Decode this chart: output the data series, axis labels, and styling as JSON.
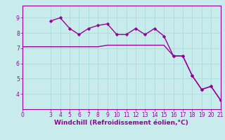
{
  "xlabel": "Windchill (Refroidissement éolien,°C)",
  "bg_color": "#c8ecec",
  "line_color": "#990099",
  "marker_color": "#990099",
  "grid_color": "#aadddd",
  "series1_x": [
    0,
    1,
    2,
    3,
    4,
    5,
    6,
    7,
    8,
    9,
    10,
    11,
    12,
    13,
    14,
    15,
    16,
    17,
    18,
    19,
    20,
    21
  ],
  "series1_y": [
    7.1,
    7.1,
    7.1,
    7.1,
    7.1,
    7.1,
    7.1,
    7.1,
    7.1,
    7.2,
    7.2,
    7.2,
    7.2,
    7.2,
    7.2,
    7.2,
    6.5,
    6.5,
    5.2,
    4.3,
    4.5,
    3.6
  ],
  "series2_x": [
    3,
    4,
    5,
    6,
    7,
    8,
    9,
    10,
    11,
    12,
    13,
    14,
    15,
    16,
    17,
    18,
    19,
    20,
    21
  ],
  "series2_y": [
    8.8,
    9.0,
    8.3,
    7.9,
    8.3,
    8.5,
    8.6,
    7.9,
    7.9,
    8.3,
    7.9,
    8.3,
    7.8,
    6.5,
    6.5,
    5.2,
    4.3,
    4.5,
    3.6
  ],
  "xlim": [
    0,
    21
  ],
  "ylim": [
    3.0,
    9.8
  ],
  "yticks": [
    4,
    5,
    6,
    7,
    8,
    9
  ],
  "xticks": [
    0,
    3,
    4,
    5,
    6,
    7,
    8,
    9,
    10,
    11,
    12,
    13,
    14,
    15,
    16,
    17,
    18,
    19,
    20,
    21
  ],
  "tick_fontsize": 5.5,
  "xlabel_fontsize": 6.5,
  "label_color": "#990099",
  "axis_color": "#990099",
  "spine_color": "#990099"
}
